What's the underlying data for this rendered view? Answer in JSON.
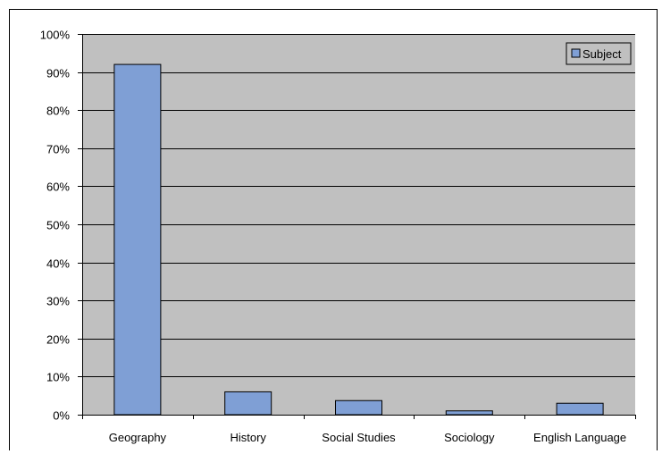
{
  "chart_data": {
    "type": "bar",
    "categories": [
      "Geography",
      "History",
      "Social Studies",
      "Sociology",
      "English Language"
    ],
    "series": [
      {
        "name": "Subject",
        "values": [
          0.92,
          0.06,
          0.037,
          0.01,
          0.03
        ],
        "color": "#7f9fd5"
      }
    ],
    "ylim": [
      0,
      1
    ],
    "yticks": [
      "0%",
      "10%",
      "20%",
      "30%",
      "40%",
      "50%",
      "60%",
      "70%",
      "80%",
      "90%",
      "100%"
    ],
    "grid": true,
    "plot_background": "#c0c0c0",
    "legend_position": "top-right"
  }
}
